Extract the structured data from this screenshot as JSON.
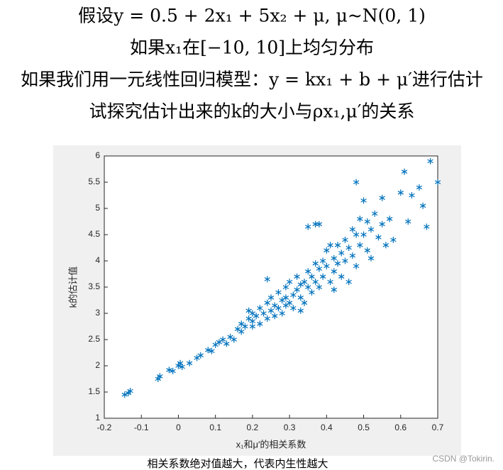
{
  "header_lines": [
    "假设y = 0.5 + 2x₁ + 5x₂ + μ, μ~N(0, 1)",
    "如果x₁在[−10, 10]上均匀分布",
    "如果我们用一元线性回归模型：y = kx₁ + b + μ′进行估计",
    "试探究估计出来的k的大小与ρx₁,μ′的关系"
  ],
  "chart_data": {
    "type": "scatter",
    "xlabel": "x₁和μ′的相关系数",
    "ylabel": "k的估计值",
    "color": "#0072bd",
    "marker": "*",
    "xlim": [
      -0.2,
      0.7
    ],
    "xticks": [
      -0.2,
      -0.1,
      0,
      0.1,
      0.2,
      0.3,
      0.4,
      0.5,
      0.6,
      0.7
    ],
    "ylim": [
      1,
      6
    ],
    "yticks": [
      1,
      1.5,
      2,
      2.5,
      3,
      3.5,
      4,
      4.5,
      5,
      5.5,
      6
    ],
    "x": [
      -0.145,
      -0.135,
      -0.13,
      -0.055,
      -0.05,
      -0.025,
      -0.015,
      0.0,
      0.005,
      0.01,
      0.03,
      0.05,
      0.06,
      0.08,
      0.09,
      0.1,
      0.11,
      0.12,
      0.13,
      0.14,
      0.15,
      0.16,
      0.17,
      0.17,
      0.18,
      0.19,
      0.19,
      0.2,
      0.2,
      0.21,
      0.22,
      0.22,
      0.23,
      0.24,
      0.24,
      0.25,
      0.25,
      0.26,
      0.26,
      0.27,
      0.27,
      0.28,
      0.28,
      0.29,
      0.29,
      0.3,
      0.3,
      0.31,
      0.31,
      0.32,
      0.32,
      0.33,
      0.33,
      0.34,
      0.34,
      0.35,
      0.35,
      0.36,
      0.36,
      0.37,
      0.37,
      0.38,
      0.38,
      0.39,
      0.39,
      0.4,
      0.4,
      0.41,
      0.41,
      0.42,
      0.42,
      0.43,
      0.43,
      0.44,
      0.44,
      0.45,
      0.45,
      0.46,
      0.46,
      0.47,
      0.47,
      0.48,
      0.48,
      0.49,
      0.49,
      0.5,
      0.5,
      0.51,
      0.51,
      0.52,
      0.52,
      0.53,
      0.54,
      0.55,
      0.55,
      0.56,
      0.57,
      0.58,
      0.6,
      0.61,
      0.62,
      0.63,
      0.65,
      0.66,
      0.67,
      0.68,
      0.7,
      0.24,
      0.37,
      0.38,
      0.35,
      0.48,
      0.42,
      0.29,
      0.33,
      0.2
    ],
    "y": [
      1.45,
      1.48,
      1.52,
      1.75,
      1.8,
      1.92,
      1.9,
      2.0,
      2.05,
      1.98,
      2.05,
      2.15,
      2.2,
      2.3,
      2.28,
      2.4,
      2.45,
      2.5,
      2.42,
      2.55,
      2.5,
      2.7,
      2.65,
      2.8,
      2.75,
      2.9,
      3.05,
      2.85,
      3.0,
      2.95,
      3.1,
      2.8,
      3.0,
      3.2,
      2.9,
      3.3,
      3.05,
      3.15,
      2.95,
      3.4,
      3.1,
      3.25,
      3.0,
      3.5,
      3.3,
      3.2,
      3.6,
      3.35,
      3.1,
      3.45,
      3.7,
      3.3,
      3.55,
      3.6,
      3.2,
      3.8,
      3.5,
      3.4,
      3.7,
      3.95,
      3.6,
      3.5,
      3.85,
      4.0,
      3.7,
      4.2,
      3.9,
      3.6,
      4.3,
      4.05,
      3.8,
      4.3,
      3.95,
      4.15,
      3.7,
      4.4,
      4.0,
      4.25,
      3.6,
      4.6,
      4.1,
      4.5,
      3.9,
      4.8,
      4.3,
      5.15,
      4.5,
      4.2,
      4.75,
      4.6,
      4.05,
      4.9,
      4.45,
      4.7,
      5.2,
      4.3,
      4.8,
      4.4,
      5.3,
      5.7,
      4.75,
      5.25,
      5.4,
      5.05,
      4.65,
      5.9,
      5.5,
      3.65,
      4.7,
      4.7,
      4.65,
      5.5,
      3.45,
      3.15,
      3.05,
      2.75
    ]
  },
  "caption": "相关系数绝对值越大，代表内生性越大",
  "watermark": "CSDN @Tokirin."
}
